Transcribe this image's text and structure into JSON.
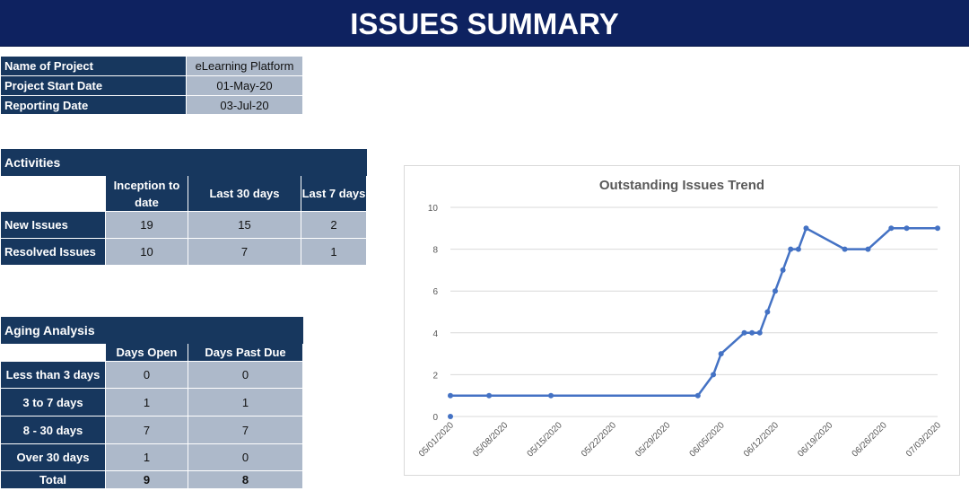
{
  "header": {
    "title": "ISSUES SUMMARY"
  },
  "project_info": [
    {
      "label": "Name of Project",
      "value": "eLearning Platform"
    },
    {
      "label": "Project Start Date",
      "value": "01-May-20"
    },
    {
      "label": "Reporting Date",
      "value": "03-Jul-20"
    }
  ],
  "activities": {
    "title": "Activities",
    "columns": [
      "Inception to date",
      "Last 30 days",
      "Last 7 days"
    ],
    "rows": [
      {
        "label": "New Issues",
        "values": [
          "19",
          "15",
          "2"
        ]
      },
      {
        "label": "Resolved Issues",
        "values": [
          "10",
          "7",
          "1"
        ]
      }
    ]
  },
  "aging": {
    "title": "Aging Analysis",
    "columns": [
      "Days Open",
      "Days Past Due"
    ],
    "rows": [
      {
        "label": "Less than 3 days",
        "values": [
          "0",
          "0"
        ]
      },
      {
        "label": "3 to 7 days",
        "values": [
          "1",
          "1"
        ]
      },
      {
        "label": "8 - 30 days",
        "values": [
          "7",
          "7"
        ]
      },
      {
        "label": "Over 30 days",
        "values": [
          "1",
          "0"
        ]
      },
      {
        "label": "Total",
        "values": [
          "9",
          "8"
        ]
      }
    ]
  },
  "colors": {
    "banner": "#0e2260",
    "header": "#1f4e79",
    "cell": "#adb9ca",
    "line": "#4472c4"
  },
  "chart_data": {
    "type": "line",
    "title": "Outstanding Issues Trend",
    "xlabel": "",
    "ylabel": "",
    "ylim": [
      0,
      10
    ],
    "yticks": [
      "0",
      "2",
      "4",
      "6",
      "8",
      "10"
    ],
    "xticks": [
      "05/01/2020",
      "05/08/2020",
      "05/15/2020",
      "05/22/2020",
      "05/29/2020",
      "06/05/2020",
      "06/12/2020",
      "06/19/2020",
      "06/26/2020",
      "07/03/2020"
    ],
    "grid": true,
    "series": [
      {
        "x": [
          "2020-05-01",
          "2020-05-06",
          "2020-05-14",
          "2020-06-02",
          "2020-06-04",
          "2020-06-05",
          "2020-06-08",
          "2020-06-09",
          "2020-06-10",
          "2020-06-11",
          "2020-06-12",
          "2020-06-13",
          "2020-06-14",
          "2020-06-15",
          "2020-06-16",
          "2020-06-21",
          "2020-06-24",
          "2020-06-27",
          "2020-06-29",
          "2020-07-03"
        ],
        "values": [
          1,
          1,
          1,
          1,
          2,
          3,
          4,
          4,
          4,
          5,
          6,
          7,
          8,
          8,
          9,
          8,
          8,
          9,
          9,
          9
        ]
      }
    ],
    "extra_points": [
      {
        "x": "2020-05-01",
        "y": 0
      }
    ]
  }
}
